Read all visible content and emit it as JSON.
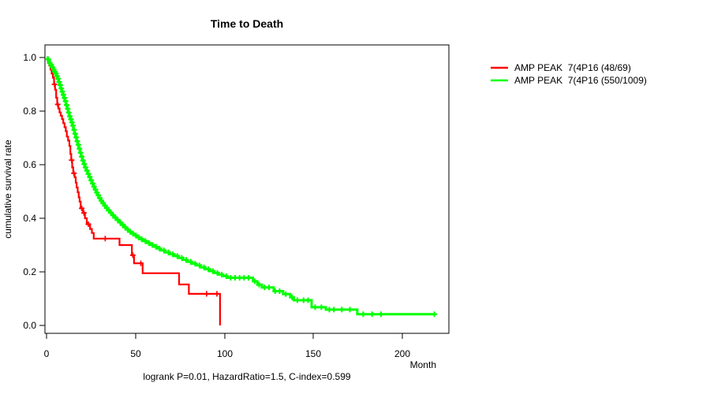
{
  "chart_data": {
    "type": "line",
    "subtype": "kaplan-meier-step",
    "title": "Time to Death",
    "xlabel": "Month",
    "ylabel": "cumulative survival rate",
    "xlim": [
      0,
      225
    ],
    "ylim": [
      0,
      1.0
    ],
    "grid": false,
    "legend_position": "right-outside",
    "x_ticks": [
      0,
      50,
      100,
      150,
      200
    ],
    "y_ticks": [
      1.0,
      0.8,
      0.6,
      0.4,
      0.2,
      0.0
    ],
    "x_tick_labels": [
      "0",
      "50",
      "100",
      "150",
      "200"
    ],
    "y_tick_labels": [
      "1.0",
      "0.8",
      "0.6",
      "0.4",
      "0.2",
      "0.0"
    ],
    "annotation": "logrank P=0.01, HazardRatio=1.5, C-index=0.599",
    "series": [
      {
        "name": "AMP PEAK  7(4P16 (48/69)",
        "color": "#ff0000",
        "steps": [
          [
            0,
            1
          ],
          [
            0.8,
            0.985
          ],
          [
            1.5,
            0.97
          ],
          [
            2.2,
            0.955
          ],
          [
            2.9,
            0.94
          ],
          [
            3.6,
            0.925
          ],
          [
            4.2,
            0.9
          ],
          [
            4.8,
            0.88
          ],
          [
            5.4,
            0.85
          ],
          [
            6,
            0.825
          ],
          [
            6.6,
            0.81
          ],
          [
            7.3,
            0.795
          ],
          [
            8,
            0.783
          ],
          [
            8.7,
            0.77
          ],
          [
            9.4,
            0.755
          ],
          [
            10.1,
            0.74
          ],
          [
            10.8,
            0.725
          ],
          [
            11.4,
            0.705
          ],
          [
            12.1,
            0.69
          ],
          [
            12.8,
            0.67
          ],
          [
            13.4,
            0.64
          ],
          [
            13.9,
            0.617
          ],
          [
            14.4,
            0.59
          ],
          [
            15,
            0.568
          ],
          [
            15.8,
            0.553
          ],
          [
            16.4,
            0.533
          ],
          [
            16.9,
            0.515
          ],
          [
            17.5,
            0.497
          ],
          [
            18.1,
            0.478
          ],
          [
            18.6,
            0.462
          ],
          [
            19.2,
            0.437
          ],
          [
            20.5,
            0.42
          ],
          [
            21.6,
            0.4
          ],
          [
            22.6,
            0.378
          ],
          [
            24.5,
            0.36
          ],
          [
            25.5,
            0.345
          ],
          [
            26.5,
            0.324
          ],
          [
            41,
            0.3
          ],
          [
            48,
            0.262
          ],
          [
            49.2,
            0.232
          ],
          [
            54,
            0.195
          ],
          [
            74.5,
            0.153
          ],
          [
            80,
            0.118
          ],
          [
            97.5,
            0
          ]
        ],
        "censor_times": [
          4.5,
          6.3,
          14.1,
          15.4,
          19.8,
          21.0,
          23.5,
          33,
          48.5,
          53,
          90,
          95.8
        ]
      },
      {
        "name": "AMP PEAK  7(4P16 (550/1009)",
        "color": "#00ff00",
        "steps": [
          [
            0,
            1
          ],
          [
            0.6,
            0.993
          ],
          [
            1.2,
            0.986
          ],
          [
            1.8,
            0.979
          ],
          [
            2.4,
            0.972
          ],
          [
            3,
            0.964
          ],
          [
            3.6,
            0.956
          ],
          [
            4.2,
            0.948
          ],
          [
            4.8,
            0.94
          ],
          [
            5.4,
            0.931
          ],
          [
            6,
            0.921
          ],
          [
            6.6,
            0.909
          ],
          [
            7.2,
            0.897
          ],
          [
            7.8,
            0.885
          ],
          [
            8.4,
            0.873
          ],
          [
            9,
            0.861
          ],
          [
            9.6,
            0.849
          ],
          [
            10.2,
            0.837
          ],
          [
            10.8,
            0.823
          ],
          [
            11.4,
            0.809
          ],
          [
            12,
            0.795
          ],
          [
            12.6,
            0.781
          ],
          [
            13.2,
            0.77
          ],
          [
            13.8,
            0.758
          ],
          [
            14.4,
            0.746
          ],
          [
            15,
            0.73
          ],
          [
            15.6,
            0.716
          ],
          [
            16.2,
            0.702
          ],
          [
            16.8,
            0.688
          ],
          [
            17.4,
            0.674
          ],
          [
            18,
            0.66
          ],
          [
            18.7,
            0.645
          ],
          [
            19.4,
            0.63
          ],
          [
            20.1,
            0.616
          ],
          [
            20.8,
            0.602
          ],
          [
            21.5,
            0.59
          ],
          [
            22.2,
            0.578
          ],
          [
            23,
            0.566
          ],
          [
            23.8,
            0.554
          ],
          [
            24.6,
            0.542
          ],
          [
            25.4,
            0.53
          ],
          [
            26.2,
            0.518
          ],
          [
            27,
            0.507
          ],
          [
            27.8,
            0.496
          ],
          [
            28.6,
            0.486
          ],
          [
            29.4,
            0.476
          ],
          [
            30.2,
            0.466
          ],
          [
            31,
            0.457
          ],
          [
            32,
            0.448
          ],
          [
            33,
            0.439
          ],
          [
            34,
            0.43
          ],
          [
            35.2,
            0.421
          ],
          [
            36.4,
            0.412
          ],
          [
            37.6,
            0.403
          ],
          [
            39,
            0.394
          ],
          [
            40.4,
            0.385
          ],
          [
            41.8,
            0.376
          ],
          [
            43.2,
            0.367
          ],
          [
            44.6,
            0.358
          ],
          [
            46,
            0.35
          ],
          [
            47.5,
            0.343
          ],
          [
            49,
            0.336
          ],
          [
            50.5,
            0.329
          ],
          [
            52,
            0.322
          ],
          [
            54,
            0.315
          ],
          [
            56,
            0.308
          ],
          [
            58,
            0.301
          ],
          [
            60,
            0.294
          ],
          [
            62,
            0.287
          ],
          [
            64,
            0.28
          ],
          [
            66.5,
            0.273
          ],
          [
            69,
            0.266
          ],
          [
            71.5,
            0.259
          ],
          [
            74,
            0.252
          ],
          [
            76.5,
            0.245
          ],
          [
            79,
            0.238
          ],
          [
            81.5,
            0.231
          ],
          [
            84,
            0.224
          ],
          [
            86.5,
            0.217
          ],
          [
            89,
            0.21
          ],
          [
            91.5,
            0.203
          ],
          [
            94,
            0.196
          ],
          [
            96.5,
            0.19
          ],
          [
            99,
            0.184
          ],
          [
            101.5,
            0.178
          ],
          [
            116,
            0.165
          ],
          [
            118.5,
            0.152
          ],
          [
            121,
            0.142
          ],
          [
            127.7,
            0.128
          ],
          [
            133,
            0.117
          ],
          [
            137,
            0.105
          ],
          [
            139,
            0.094
          ],
          [
            149,
            0.068
          ],
          [
            157,
            0.059
          ],
          [
            174.7,
            0.042
          ],
          [
            218,
            0.042
          ]
        ],
        "censor_times": [
          1.0,
          1.8,
          2.6,
          3.3,
          4.0,
          4.7,
          5.3,
          5.9,
          6.5,
          7.1,
          7.7,
          8.3,
          8.9,
          9.5,
          10.1,
          10.7,
          11.3,
          11.9,
          12.5,
          13.1,
          13.7,
          14.3,
          14.9,
          15.5,
          16.1,
          16.7,
          17.3,
          17.9,
          18.5,
          19.1,
          19.8,
          20.5,
          21.2,
          21.9,
          22.7,
          23.5,
          24.3,
          25.1,
          25.9,
          26.7,
          27.5,
          28.3,
          29.1,
          29.9,
          30.8,
          31.8,
          32.8,
          33.8,
          35.0,
          36.2,
          37.4,
          38.7,
          40.0,
          41.4,
          42.8,
          44.2,
          45.6,
          47.0,
          48.6,
          50.2,
          51.8,
          53.5,
          55.5,
          57.5,
          59.5,
          61.5,
          63.5,
          66.0,
          68.5,
          71.0,
          73.5,
          76.0,
          78.5,
          81.0,
          83.5,
          86.0,
          88.5,
          91.0,
          93.5,
          96.0,
          98.5,
          101.0,
          103.5,
          106.0,
          108.5,
          111.0,
          113.5,
          117.0,
          119.5,
          122.5,
          125.0,
          128.5,
          131.0,
          134.5,
          138.0,
          141.0,
          144.5,
          147.0,
          151.0,
          154.5,
          159.0,
          161.5,
          166.0,
          170.5,
          178.0,
          183.0,
          188.0,
          218.0
        ]
      }
    ]
  }
}
